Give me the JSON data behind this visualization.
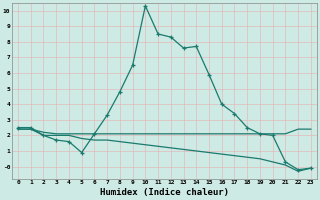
{
  "xlabel": "Humidex (Indice chaleur)",
  "bg_color": "#ceeae4",
  "grid_color": "#e8b0b0",
  "line_color": "#1a7a6e",
  "series1_x": [
    0,
    1,
    2,
    3,
    4,
    5,
    6,
    7,
    8,
    9,
    10,
    11,
    12,
    13,
    14,
    15,
    16,
    17,
    18,
    19,
    20,
    21,
    22,
    23
  ],
  "series1_y": [
    2.5,
    2.5,
    2.0,
    1.7,
    1.6,
    0.9,
    2.1,
    3.3,
    4.8,
    6.5,
    10.3,
    8.5,
    8.3,
    7.6,
    7.7,
    5.9,
    4.0,
    3.4,
    2.5,
    2.1,
    2.0,
    0.3,
    -0.2,
    -0.1
  ],
  "series2_x": [
    0,
    1,
    2,
    3,
    4,
    5,
    6,
    7,
    8,
    9,
    10,
    11,
    12,
    13,
    14,
    15,
    16,
    17,
    18,
    19,
    20,
    21,
    22,
    23
  ],
  "series2_y": [
    2.4,
    2.4,
    2.2,
    2.1,
    2.1,
    2.1,
    2.1,
    2.1,
    2.1,
    2.1,
    2.1,
    2.1,
    2.1,
    2.1,
    2.1,
    2.1,
    2.1,
    2.1,
    2.1,
    2.1,
    2.1,
    2.1,
    2.4,
    2.4
  ],
  "series3_x": [
    0,
    1,
    2,
    3,
    4,
    5,
    6,
    7,
    8,
    9,
    10,
    11,
    12,
    13,
    14,
    15,
    16,
    17,
    18,
    19,
    20,
    21,
    22,
    23
  ],
  "series3_y": [
    2.4,
    2.4,
    2.0,
    2.0,
    2.0,
    1.8,
    1.7,
    1.7,
    1.6,
    1.5,
    1.4,
    1.3,
    1.2,
    1.1,
    1.0,
    0.9,
    0.8,
    0.7,
    0.6,
    0.5,
    0.3,
    0.1,
    -0.3,
    -0.1
  ],
  "ylim": [
    -0.8,
    10.5
  ],
  "xlim": [
    -0.5,
    23.5
  ],
  "yticks": [
    0,
    1,
    2,
    3,
    4,
    5,
    6,
    7,
    8,
    9,
    10
  ],
  "ytick_labels": [
    "-0",
    "1",
    "2",
    "3",
    "4",
    "5",
    "6",
    "7",
    "8",
    "9",
    "10"
  ],
  "xticks": [
    0,
    1,
    2,
    3,
    4,
    5,
    6,
    7,
    8,
    9,
    10,
    11,
    12,
    13,
    14,
    15,
    16,
    17,
    18,
    19,
    20,
    21,
    22,
    23
  ]
}
